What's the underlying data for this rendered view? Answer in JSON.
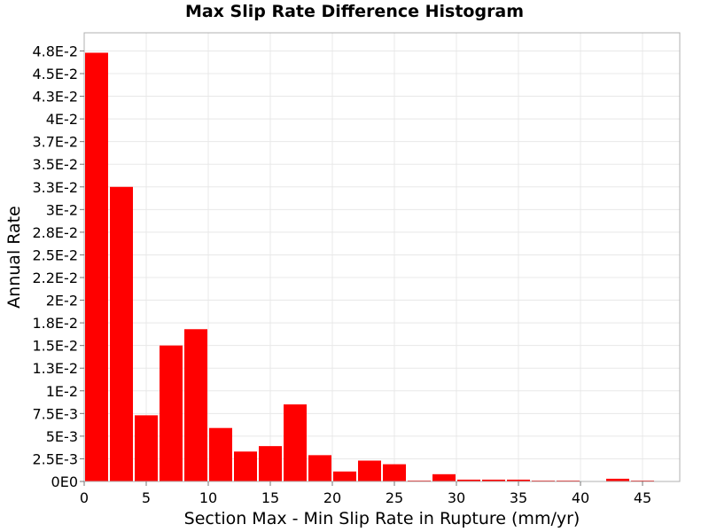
{
  "chart_data": {
    "type": "bar",
    "title": "Max Slip Rate Difference Histogram",
    "xlabel": "Section Max - Min Slip Rate in Rupture (mm/yr)",
    "ylabel": "Annual Rate",
    "bin_width": 2,
    "x": [
      1,
      3,
      5,
      7,
      9,
      11,
      13,
      15,
      17,
      19,
      21,
      23,
      25,
      27,
      29,
      31,
      33,
      35,
      37,
      39,
      41,
      43,
      45,
      47
    ],
    "values": [
      0.0473,
      0.0325,
      0.0073,
      0.015,
      0.0168,
      0.0059,
      0.0033,
      0.0039,
      0.0085,
      0.0029,
      0.0011,
      0.0023,
      0.0019,
      0.0001,
      0.0008,
      0.0002,
      0.0002,
      0.0002,
      0.0001,
      0.0001,
      0.0,
      0.0003,
      0.0001,
      0.0
    ],
    "xlim": [
      0,
      48
    ],
    "ylim": [
      0,
      0.0495
    ],
    "x_ticks": [
      0,
      5,
      10,
      15,
      20,
      25,
      30,
      35,
      40,
      45
    ],
    "x_tick_labels": [
      "0",
      "5",
      "10",
      "15",
      "20",
      "25",
      "30",
      "35",
      "40",
      "45"
    ],
    "y_ticks": [
      0,
      0.0025,
      0.005,
      0.0075,
      0.01,
      0.0125,
      0.015,
      0.0175,
      0.02,
      0.0225,
      0.025,
      0.0275,
      0.03,
      0.0325,
      0.035,
      0.0375,
      0.04,
      0.0425,
      0.045,
      0.0475
    ],
    "y_tick_labels": [
      "0E0",
      "2.5E-3",
      "5E-3",
      "7.5E-3",
      "1E-2",
      "1.3E-2",
      "1.5E-2",
      "1.8E-2",
      "2E-2",
      "2.2E-2",
      "2.5E-2",
      "2.8E-2",
      "3E-2",
      "3.3E-2",
      "3.5E-2",
      "3.7E-2",
      "4E-2",
      "4.3E-2",
      "4.5E-2",
      "4.8E-2"
    ],
    "grid": true,
    "legend": "none",
    "colors": {
      "bar": "#ff0000",
      "grid": "#e8e8e8",
      "frame": "#b0b0b0"
    }
  }
}
